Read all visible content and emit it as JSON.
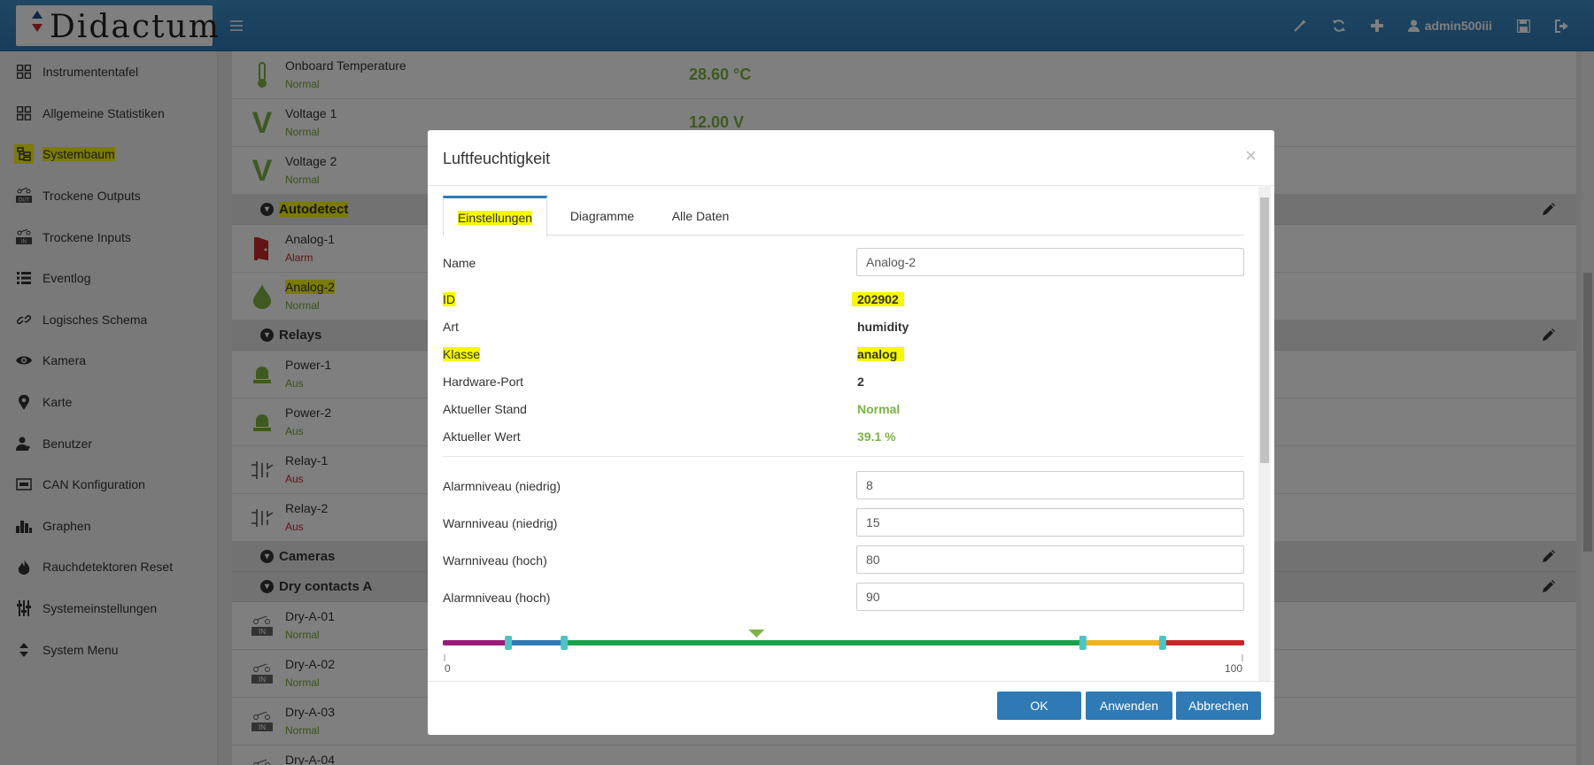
{
  "header": {
    "brand": "Didactum",
    "user": "admin500iii",
    "icons": [
      "magic-wand-icon",
      "refresh-icon",
      "plus-icon",
      "user-icon",
      "save-icon",
      "logout-icon"
    ]
  },
  "sidebar": {
    "items": [
      {
        "label": "Instrumententafel",
        "icon": "grid-icon"
      },
      {
        "label": "Allgemeine Statistiken",
        "icon": "grid-icon"
      },
      {
        "label": "Systembaum",
        "icon": "tree-icon",
        "highlighted": true
      },
      {
        "label": "Trockene Outputs",
        "icon": "dry-output-icon"
      },
      {
        "label": "Trockene Inputs",
        "icon": "dry-input-icon"
      },
      {
        "label": "Eventlog",
        "icon": "list-icon"
      },
      {
        "label": "Logisches Schema",
        "icon": "link-icon"
      },
      {
        "label": "Kamera",
        "icon": "eye-icon"
      },
      {
        "label": "Karte",
        "icon": "map-marker-icon"
      },
      {
        "label": "Benutzer",
        "icon": "users-icon"
      },
      {
        "label": "CAN Konfiguration",
        "icon": "can-icon"
      },
      {
        "label": "Graphen",
        "icon": "bar-chart-icon"
      },
      {
        "label": "Rauchdetektoren Reset",
        "icon": "fire-icon"
      },
      {
        "label": "Systemeinstellungen",
        "icon": "sliders-icon"
      },
      {
        "label": "System Menu",
        "icon": "sort-icon"
      }
    ]
  },
  "tree": {
    "top_rows": [
      {
        "name": "Onboard Temperature",
        "status": "Normal",
        "value": "28.60 °C",
        "icon": "thermometer-icon"
      },
      {
        "name": "Voltage 1",
        "status": "Normal",
        "value": "12.00 V",
        "icon": "voltage-icon"
      },
      {
        "name": "Voltage 2",
        "status": "Normal",
        "value": "",
        "icon": "voltage-icon"
      }
    ],
    "groups": [
      {
        "label": "Autodetect"
      },
      {
        "label": "Relays"
      },
      {
        "label": "Cameras"
      },
      {
        "label": "Dry contacts A"
      }
    ],
    "autodetect": [
      {
        "name": "Analog-1",
        "status": "Alarm",
        "icon": "door-icon"
      },
      {
        "name": "Analog-2",
        "status": "Normal",
        "icon": "drop-icon"
      }
    ],
    "relays": [
      {
        "name": "Power-1",
        "status": "Aus",
        "icon": "siren-icon"
      },
      {
        "name": "Power-2",
        "status": "Aus",
        "icon": "siren-icon"
      },
      {
        "name": "Relay-1",
        "status": "Aus",
        "icon": "relay-icon"
      },
      {
        "name": "Relay-2",
        "status": "Aus",
        "icon": "relay-icon"
      }
    ],
    "dry": [
      {
        "name": "Dry-A-01",
        "status": "Normal",
        "badge": "IN"
      },
      {
        "name": "Dry-A-02",
        "status": "Normal",
        "badge": "IN"
      },
      {
        "name": "Dry-A-03",
        "status": "Normal",
        "badge": "IN"
      },
      {
        "name": "Dry-A-04",
        "status": "",
        "badge": ""
      }
    ]
  },
  "modal": {
    "title": "Luftfeuchtigkeit",
    "tabs": [
      "Einstellungen",
      "Diagramme",
      "Alle Daten"
    ],
    "active_tab": "Einstellungen",
    "fields": {
      "name_label": "Name",
      "name_value": "Analog-2",
      "id_label": "ID",
      "id_value": "202902",
      "art_label": "Art",
      "art_value": "humidity",
      "klasse_label": "Klasse",
      "klasse_value": "analog",
      "port_label": "Hardware-Port",
      "port_value": "2",
      "stand_label": "Aktueller Stand",
      "stand_value": "Normal",
      "wert_label": "Aktueller Wert",
      "wert_value": "39.1 %"
    },
    "levels": {
      "alarm_low_label": "Alarmniveau (niedrig)",
      "alarm_low": "8",
      "warn_low_label": "Warnniveau (niedrig)",
      "warn_low": "15",
      "warn_high_label": "Warnniveau (hoch)",
      "warn_high": "80",
      "alarm_high_label": "Alarmniveau (hoch)",
      "alarm_high": "90"
    },
    "slider": {
      "min_label": "0",
      "max_label": "100",
      "min": 0,
      "max": 100,
      "current": 39.1,
      "thresholds": [
        8,
        15,
        80,
        90
      ],
      "colors": {
        "alarm_low": "#9c1b7a",
        "warn_low": "#2f7ab5",
        "normal": "#1aa24a",
        "warn_high": "#f0b21e",
        "alarm_high": "#c62828",
        "handle": "#4fc3c3",
        "marker": "#7cb342"
      }
    },
    "buttons": {
      "ok": "OK",
      "apply": "Anwenden",
      "cancel": "Abbrechen"
    }
  },
  "colors": {
    "header": "#2f7ab5",
    "normal": "#6aa82e",
    "alarm": "#c62828",
    "highlight": "#f7f700"
  }
}
